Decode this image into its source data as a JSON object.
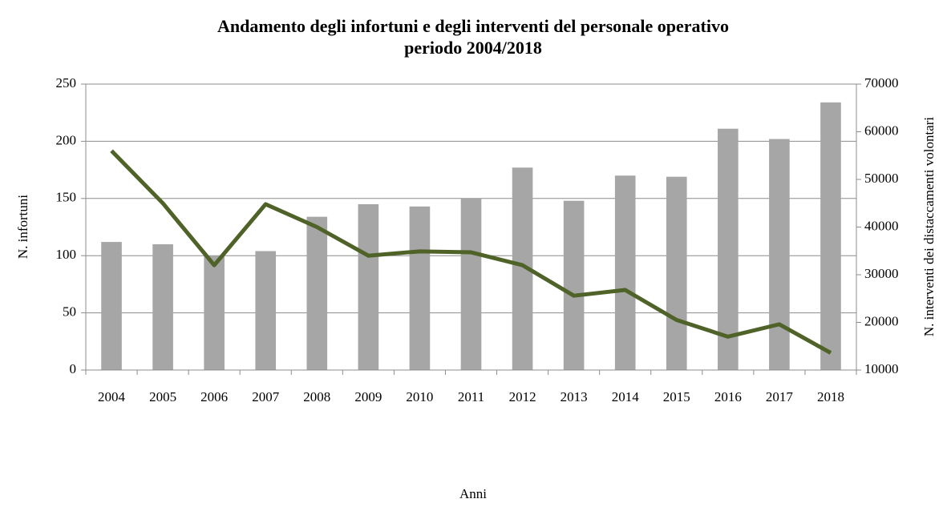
{
  "chart_data": {
    "type": "bar_line",
    "title": "Andamento degli infortuni e degli interventi del personale operativo",
    "subtitle": "periodo 2004/2018",
    "x_label": "Anni",
    "y_label": "N. infortuni",
    "y2_label": "N. interventi dei distaccamenti volontari",
    "categories": [
      "2004",
      "2005",
      "2006",
      "2007",
      "2008",
      "2009",
      "2010",
      "2011",
      "2012",
      "2013",
      "2014",
      "2015",
      "2016",
      "2017",
      "2018"
    ],
    "series": [
      {
        "type": "bar",
        "color": "#a6a6a6",
        "values": [
          112,
          110,
          100,
          104,
          134,
          145,
          143,
          150,
          177,
          148,
          170,
          169,
          211,
          202,
          234
        ]
      },
      {
        "type": "line",
        "axis": "y2",
        "color": "#4f6228",
        "values": [
          56000,
          45000,
          32000,
          44800,
          40000,
          34000,
          34900,
          34700,
          32000,
          25600,
          26800,
          20500,
          17000,
          19600,
          13600
        ]
      }
    ],
    "ylim": [
      0,
      250
    ],
    "yticks": [
      0,
      50,
      100,
      150,
      200,
      250
    ],
    "y2lim": [
      10000,
      70000
    ],
    "y2ticks": [
      10000,
      20000,
      30000,
      40000,
      50000,
      60000,
      70000
    ],
    "grid": true
  }
}
